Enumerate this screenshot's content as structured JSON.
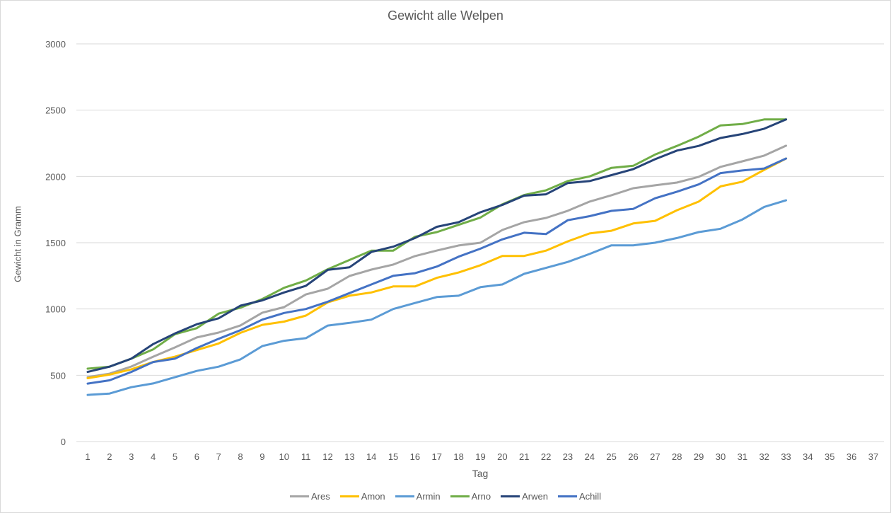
{
  "chart_data": {
    "type": "line",
    "title": "Gewicht alle Welpen",
    "xlabel": "Tag",
    "ylabel": "Gewicht in Gramm",
    "ylim": [
      0,
      3000
    ],
    "yticks": [
      0,
      500,
      1000,
      1500,
      2000,
      2500,
      3000
    ],
    "grid": true,
    "legend_position": "bottom",
    "categories": [
      "1",
      "2",
      "3",
      "4",
      "5",
      "6",
      "7",
      "8",
      "9",
      "10",
      "11",
      "12",
      "13",
      "14",
      "15",
      "16",
      "17",
      "18",
      "19",
      "20",
      "21",
      "22",
      "23",
      "24",
      "25",
      "26",
      "27",
      "28",
      "29",
      "30",
      "31",
      "32",
      "33",
      "34",
      "35",
      "36",
      "37"
    ],
    "series": [
      {
        "name": "Ares",
        "color": "#a5a5a5",
        "values": [
          486,
          512,
          566,
          640,
          710,
          785,
          822,
          876,
          972,
          1014,
          1110,
          1153,
          1249,
          1297,
          1335,
          1399,
          1441,
          1479,
          1500,
          1596,
          1655,
          1687,
          1741,
          1810,
          1858,
          1911,
          1933,
          1954,
          1997,
          2072,
          2114,
          2157,
          2232
        ]
      },
      {
        "name": "Amon",
        "color": "#ffc000",
        "values": [
          478,
          505,
          545,
          600,
          640,
          690,
          740,
          820,
          880,
          905,
          950,
          1050,
          1100,
          1125,
          1170,
          1170,
          1235,
          1275,
          1330,
          1400,
          1400,
          1440,
          1510,
          1570,
          1590,
          1645,
          1665,
          1745,
          1810,
          1925,
          1960,
          2050,
          2135
        ]
      },
      {
        "name": "Armin",
        "color": "#5b9bd5",
        "values": [
          352,
          362,
          410,
          438,
          485,
          533,
          565,
          620,
          720,
          760,
          780,
          875,
          895,
          920,
          1000,
          1045,
          1090,
          1100,
          1165,
          1185,
          1265,
          1310,
          1355,
          1415,
          1480,
          1480,
          1500,
          1535,
          1580,
          1605,
          1675,
          1770,
          1820
        ]
      },
      {
        "name": "Arno",
        "color": "#70ad47",
        "values": [
          550,
          565,
          625,
          695,
          810,
          855,
          965,
          1010,
          1075,
          1160,
          1215,
          1300,
          1370,
          1440,
          1440,
          1545,
          1580,
          1635,
          1690,
          1790,
          1860,
          1895,
          1965,
          2000,
          2065,
          2080,
          2165,
          2230,
          2300,
          2385,
          2395,
          2430,
          2430
        ]
      },
      {
        "name": "Arwen",
        "color": "#264478",
        "values": [
          525,
          565,
          625,
          735,
          815,
          885,
          930,
          1025,
          1065,
          1125,
          1175,
          1295,
          1315,
          1430,
          1470,
          1535,
          1620,
          1655,
          1730,
          1785,
          1855,
          1865,
          1950,
          1965,
          2010,
          2055,
          2130,
          2195,
          2230,
          2290,
          2320,
          2360,
          2430
        ]
      },
      {
        "name": "Achill",
        "color": "#4472c4",
        "values": [
          437,
          462,
          525,
          600,
          625,
          705,
          775,
          840,
          920,
          970,
          1000,
          1055,
          1120,
          1185,
          1250,
          1270,
          1320,
          1395,
          1455,
          1525,
          1575,
          1565,
          1670,
          1700,
          1740,
          1755,
          1835,
          1885,
          1940,
          2025,
          2045,
          2060,
          2135
        ]
      }
    ]
  },
  "colors": {
    "gridline": "#d9d9d9",
    "text": "#595959"
  }
}
